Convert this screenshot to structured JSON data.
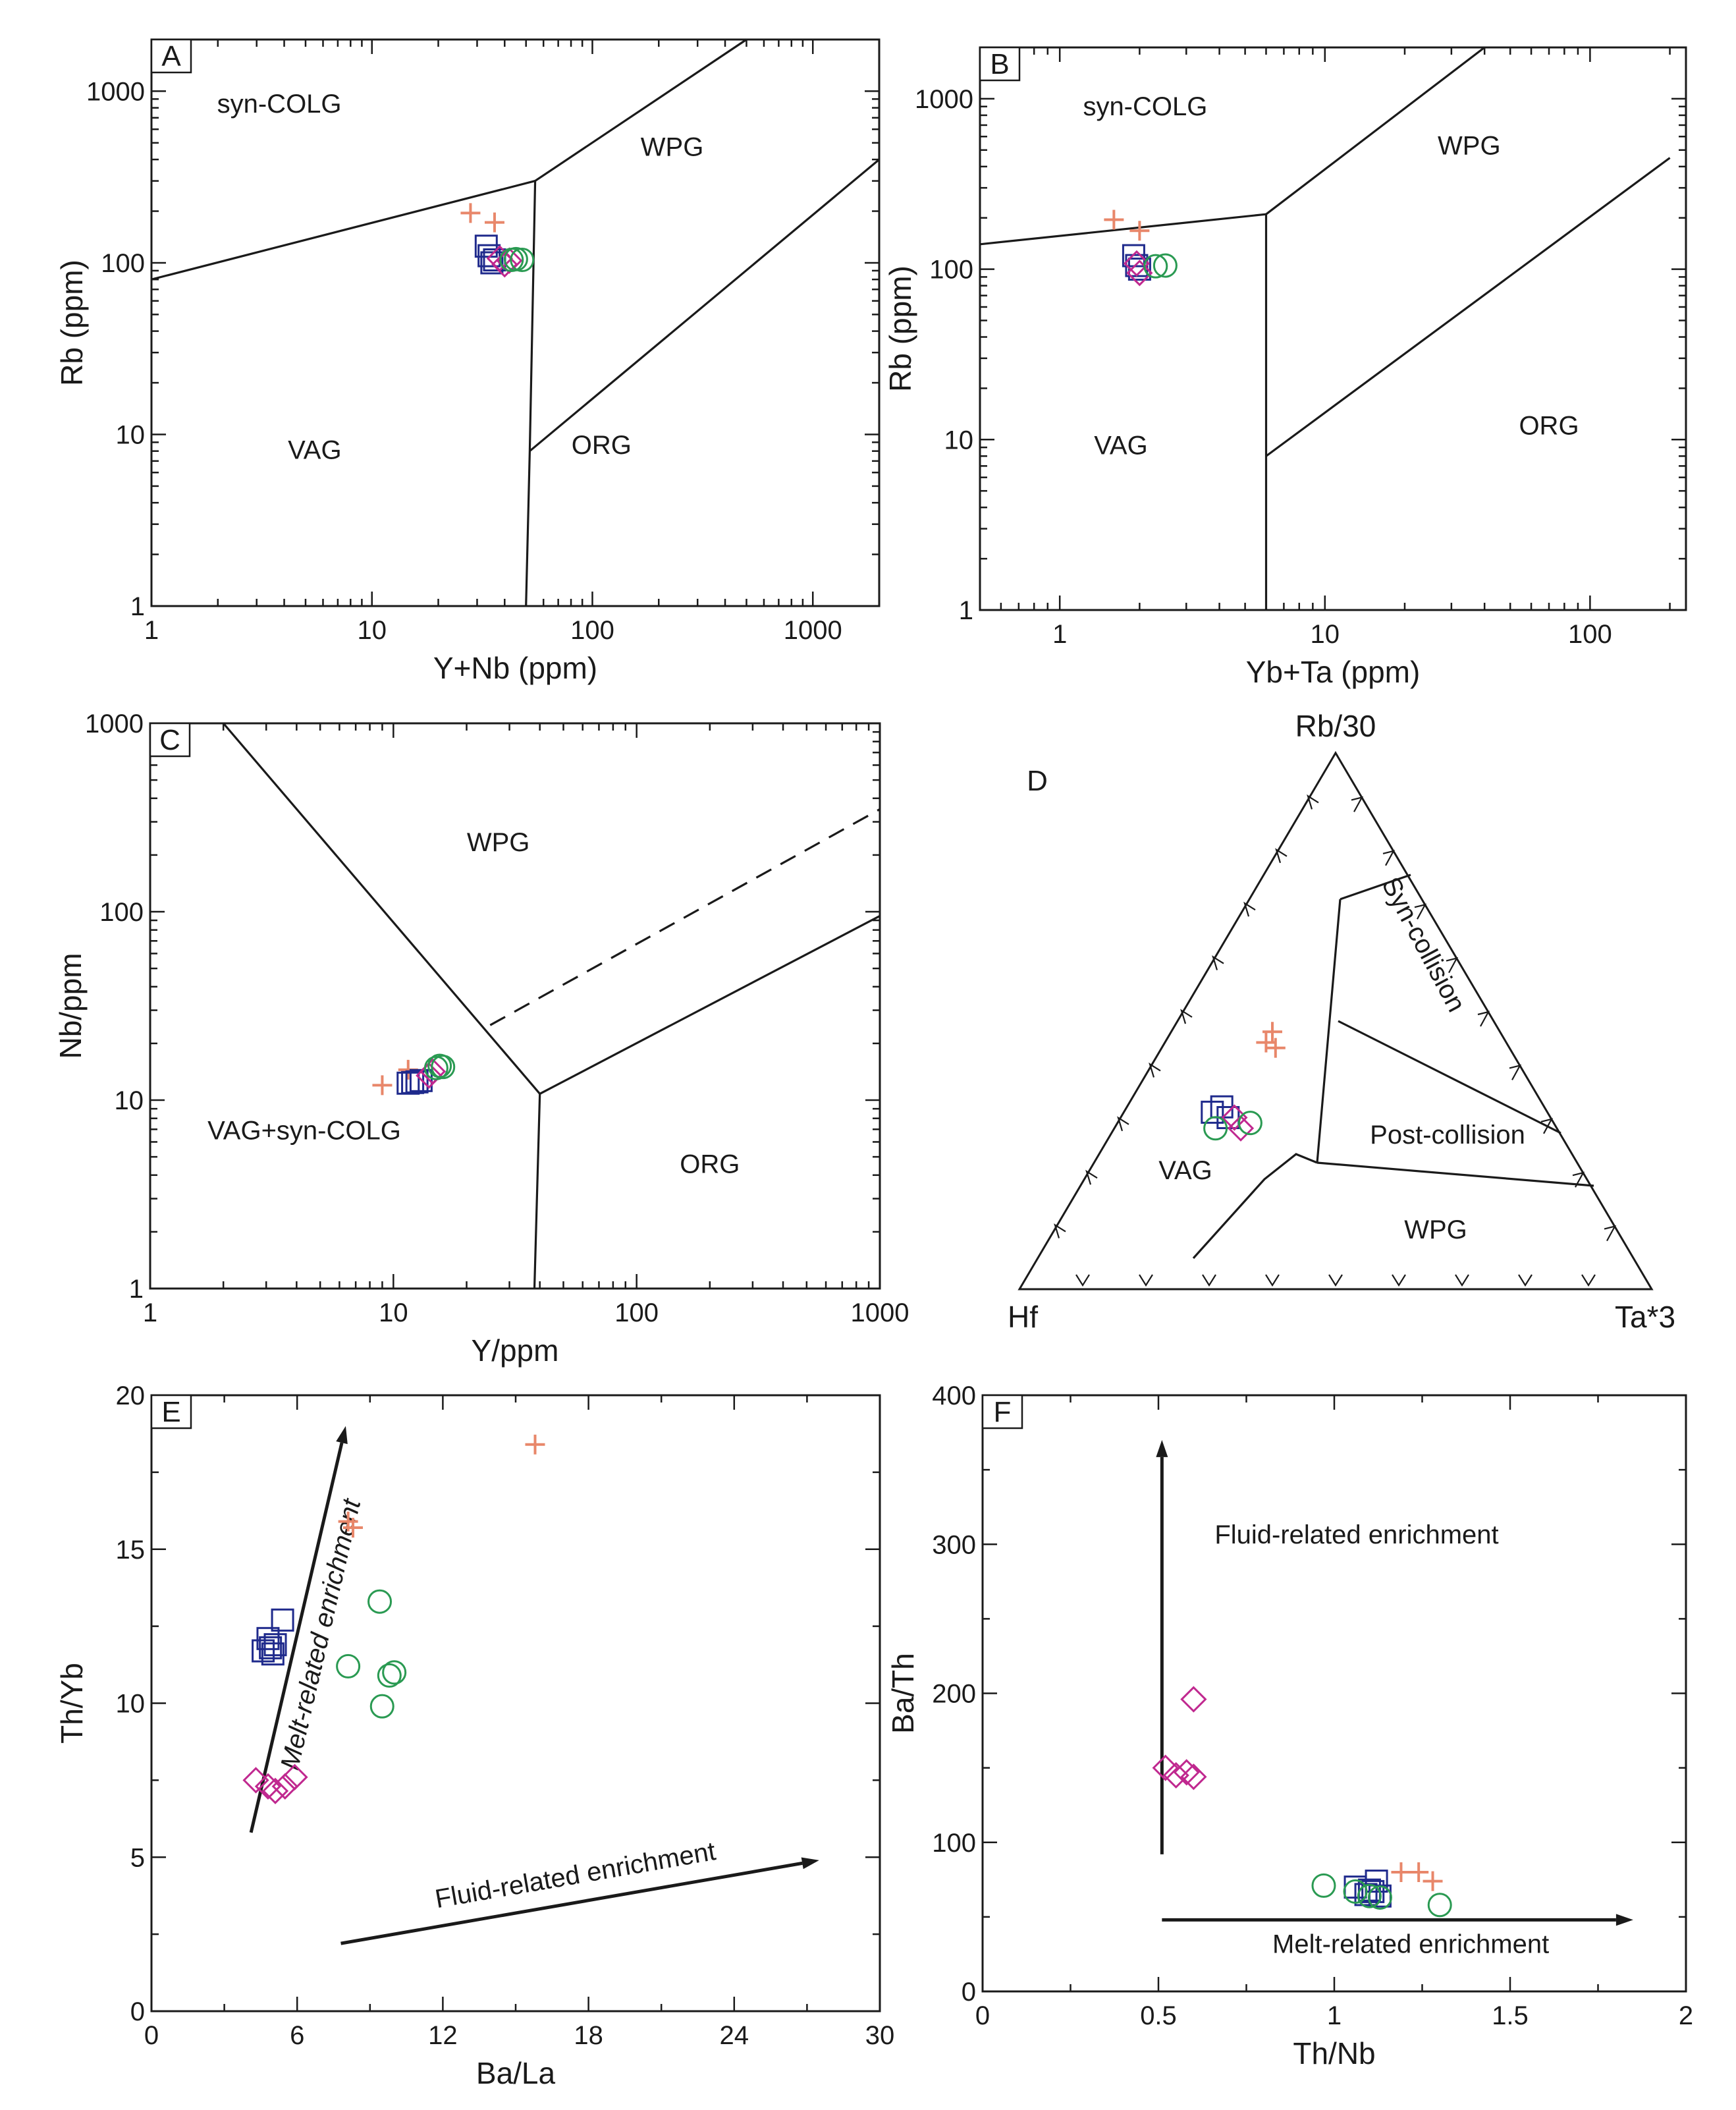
{
  "colors": {
    "cross": "#e8876a",
    "square": "#1f2a8c",
    "diamond": "#c0288f",
    "circle": "#2a9a52",
    "line": "#1a1a1a"
  },
  "chart_data": [
    {
      "panel": "A",
      "type": "scatter",
      "xscale": "log",
      "yscale": "log",
      "xlabel": "Y+Nb (ppm)",
      "ylabel": "Rb (ppm)",
      "xlim": [
        1,
        2000
      ],
      "ylim": [
        1,
        2000
      ],
      "xticks": [
        1,
        10,
        100,
        1000
      ],
      "xtick_labels": [
        "1",
        "10",
        "100",
        "1000"
      ],
      "yticks": [
        1,
        10,
        100,
        1000
      ],
      "ytick_labels": [
        "1",
        "10",
        "100",
        "1000"
      ],
      "regions": [
        {
          "label": "syn-COLG",
          "x": 3.8,
          "y": 750
        },
        {
          "label": "WPG",
          "x": 230,
          "y": 420
        },
        {
          "label": "VAG",
          "x": 5.5,
          "y": 7.2
        },
        {
          "label": "ORG",
          "x": 110,
          "y": 7.7
        }
      ],
      "boundaries": [
        {
          "points": [
            [
              1,
              80
            ],
            [
              55,
              300
            ]
          ]
        },
        {
          "points": [
            [
              55,
              300
            ],
            [
              52,
              8
            ],
            [
              50,
              1
            ]
          ]
        },
        {
          "points": [
            [
              55,
              300
            ],
            [
              500,
              2000
            ]
          ]
        },
        {
          "points": [
            [
              52,
              8
            ],
            [
              2000,
              400
            ]
          ]
        }
      ],
      "series": [
        {
          "marker": "cross",
          "points": [
            [
              28,
              195
            ],
            [
              36,
              172
            ]
          ]
        },
        {
          "marker": "square",
          "points": [
            [
              33,
              125
            ],
            [
              34,
              110
            ],
            [
              35,
              100
            ],
            [
              36,
              104
            ]
          ]
        },
        {
          "marker": "diamond",
          "points": [
            [
              40,
              98
            ],
            [
              42,
              103
            ],
            [
              38,
              106
            ]
          ]
        },
        {
          "marker": "circle",
          "points": [
            [
              43,
              104
            ],
            [
              45,
              105
            ],
            [
              48,
              104
            ]
          ]
        }
      ]
    },
    {
      "panel": "B",
      "type": "scatter",
      "xscale": "log",
      "yscale": "log",
      "xlabel": "Yb+Ta (ppm)",
      "ylabel": "Rb (ppm)",
      "xlim": [
        0.5,
        230
      ],
      "ylim": [
        1,
        2000
      ],
      "xticks": [
        1,
        10,
        100
      ],
      "xtick_labels": [
        "1",
        "10",
        "100"
      ],
      "yticks": [
        1,
        10,
        100,
        1000
      ],
      "ytick_labels": [
        "1",
        "10",
        "100",
        "1000"
      ],
      "regions": [
        {
          "label": "syn-COLG",
          "x": 2.1,
          "y": 800
        },
        {
          "label": "WPG",
          "x": 35,
          "y": 470
        },
        {
          "label": "VAG",
          "x": 1.7,
          "y": 8.2
        },
        {
          "label": "ORG",
          "x": 70,
          "y": 10.7
        }
      ],
      "boundaries": [
        {
          "points": [
            [
              0.5,
              140
            ],
            [
              6,
              210
            ]
          ]
        },
        {
          "points": [
            [
              6,
              210
            ],
            [
              6,
              1
            ]
          ]
        },
        {
          "points": [
            [
              6,
              210
            ],
            [
              40,
              2000
            ]
          ]
        },
        {
          "points": [
            [
              6,
              8
            ],
            [
              200,
              450
            ]
          ]
        }
      ],
      "series": [
        {
          "marker": "cross",
          "points": [
            [
              1.6,
              195
            ],
            [
              2.0,
              168
            ]
          ]
        },
        {
          "marker": "square",
          "points": [
            [
              1.9,
              120
            ],
            [
              1.95,
              105
            ],
            [
              2.0,
              100
            ]
          ]
        },
        {
          "marker": "diamond",
          "points": [
            [
              2.0,
              95
            ],
            [
              1.95,
              108
            ]
          ]
        },
        {
          "marker": "circle",
          "points": [
            [
              2.3,
              104
            ],
            [
              2.5,
              105
            ]
          ]
        }
      ]
    },
    {
      "panel": "C",
      "type": "scatter",
      "xscale": "log",
      "yscale": "log",
      "xlabel": "Y/ppm",
      "ylabel": "Nb/ppm",
      "xlim": [
        1,
        1000
      ],
      "ylim": [
        1,
        1000
      ],
      "xticks": [
        1,
        10,
        100,
        1000
      ],
      "xtick_labels": [
        "1",
        "10",
        "100",
        "1000"
      ],
      "yticks": [
        1,
        10,
        100,
        1000
      ],
      "ytick_labels": [
        "1",
        "10",
        "100",
        "1000"
      ],
      "regions": [
        {
          "label": "WPG",
          "x": 27,
          "y": 210
        },
        {
          "label": "VAG+syn-COLG",
          "x": 4.3,
          "y": 6.2
        },
        {
          "label": "ORG",
          "x": 200,
          "y": 4.1
        }
      ],
      "boundaries": [
        {
          "points": [
            [
              1000,
              95
            ],
            [
              40,
              10.8
            ],
            [
              38,
              1
            ]
          ]
        },
        {
          "points": [
            [
              40,
              10.8
            ],
            [
              2,
              1000
            ]
          ]
        },
        {
          "points": [
            [
              25,
              25
            ],
            [
              1000,
              350
            ]
          ],
          "dashed": true
        }
      ],
      "series": [
        {
          "marker": "cross",
          "points": [
            [
              9,
              12
            ],
            [
              11.5,
              14.5
            ]
          ]
        },
        {
          "marker": "square",
          "points": [
            [
              11.5,
              12.3
            ],
            [
              12,
              12.4
            ],
            [
              12.5,
              12.5
            ],
            [
              13,
              12.7
            ]
          ]
        },
        {
          "marker": "diamond",
          "points": [
            [
              14,
              13.5
            ],
            [
              14.5,
              14.2
            ]
          ]
        },
        {
          "marker": "circle",
          "points": [
            [
              15,
              14.8
            ],
            [
              15.5,
              15.2
            ],
            [
              16,
              15
            ]
          ]
        }
      ]
    },
    {
      "panel": "D",
      "type": "ternary",
      "vertices": {
        "top": "Rb/30",
        "left": "Hf",
        "right": "Ta*3"
      },
      "regions": [
        {
          "label": "VAG"
        },
        {
          "label": "Syn-collision"
        },
        {
          "label": "Post-collision"
        },
        {
          "label": "WPG"
        }
      ],
      "series": [
        {
          "marker": "cross",
          "points": [
            [
              0.48,
              0.36,
              0.16
            ],
            [
              0.46,
              0.38,
              0.16
            ],
            [
              0.45,
              0.37,
              0.18
            ]
          ]
        },
        {
          "marker": "square",
          "points": [
            [
              0.33,
              0.53,
              0.14
            ],
            [
              0.34,
              0.51,
              0.15
            ],
            [
              0.32,
              0.51,
              0.17
            ]
          ]
        },
        {
          "marker": "diamond",
          "points": [
            [
              0.32,
              0.5,
              0.18
            ],
            [
              0.3,
              0.5,
              0.2
            ]
          ]
        },
        {
          "marker": "circle",
          "points": [
            [
              0.3,
              0.54,
              0.16
            ],
            [
              0.31,
              0.48,
              0.21
            ]
          ]
        }
      ]
    },
    {
      "panel": "E",
      "type": "scatter",
      "xlabel": "Ba/La",
      "ylabel": "Th/Yb",
      "xlim": [
        0,
        30
      ],
      "ylim": [
        0,
        20
      ],
      "xticks": [
        0,
        6,
        12,
        18,
        24,
        30
      ],
      "xtick_labels": [
        "0",
        "6",
        "12",
        "18",
        "24",
        "30"
      ],
      "yticks": [
        0,
        5,
        10,
        15,
        20
      ],
      "ytick_labels": [
        "0",
        "5",
        "10",
        "15",
        "20"
      ],
      "annotations": [
        {
          "text": "Melt-related enrichment",
          "from": [
            4.1,
            5.8
          ],
          "to": [
            8.0,
            19.0
          ]
        },
        {
          "text": "Fluid-related enrichment",
          "from": [
            7.8,
            2.2
          ],
          "to": [
            27.5,
            4.9
          ]
        }
      ],
      "series": [
        {
          "marker": "cross",
          "points": [
            [
              15.8,
              18.4
            ],
            [
              8.1,
              15.9
            ],
            [
              8.3,
              15.7
            ]
          ]
        },
        {
          "marker": "square",
          "points": [
            [
              5.4,
              12.7
            ],
            [
              4.8,
              12.1
            ],
            [
              5.1,
              11.9
            ],
            [
              4.6,
              11.7
            ],
            [
              5.0,
              11.6
            ],
            [
              4.9,
              11.8
            ]
          ]
        },
        {
          "marker": "diamond",
          "points": [
            [
              4.3,
              7.5
            ],
            [
              4.8,
              7.3
            ],
            [
              5.1,
              7.15
            ],
            [
              5.5,
              7.3
            ],
            [
              5.9,
              7.6
            ]
          ]
        },
        {
          "marker": "circle",
          "points": [
            [
              9.4,
              13.3
            ],
            [
              8.1,
              11.2
            ],
            [
              10.0,
              11.0
            ],
            [
              9.8,
              10.9
            ],
            [
              9.5,
              9.9
            ]
          ]
        }
      ]
    },
    {
      "panel": "F",
      "type": "scatter",
      "xlabel": "Th/Nb",
      "ylabel": "Ba/Th",
      "xlim": [
        0,
        2
      ],
      "ylim": [
        0,
        400
      ],
      "xticks": [
        0,
        0.5,
        1,
        1.5,
        2
      ],
      "xtick_labels": [
        "0",
        "0.5",
        "1",
        "1.5",
        "2"
      ],
      "yticks": [
        0,
        100,
        200,
        300,
        400
      ],
      "ytick_labels": [
        "0",
        "100",
        "200",
        "300",
        "400"
      ],
      "annotations": [
        {
          "text": "Fluid-related enrichment",
          "from": [
            0.51,
            92
          ],
          "to": [
            0.51,
            370
          ]
        },
        {
          "text": "Melt-related enrichment",
          "from": [
            0.51,
            48
          ],
          "to": [
            1.85,
            48
          ]
        }
      ],
      "series": [
        {
          "marker": "cross",
          "points": [
            [
              1.19,
              80
            ],
            [
              1.24,
              80
            ],
            [
              1.28,
              74
            ]
          ]
        },
        {
          "marker": "square",
          "points": [
            [
              1.06,
              70
            ],
            [
              1.1,
              68
            ],
            [
              1.12,
              74
            ],
            [
              1.13,
              64
            ],
            [
              1.11,
              67
            ],
            [
              1.09,
              65
            ]
          ]
        },
        {
          "marker": "diamond",
          "points": [
            [
              0.6,
              196
            ],
            [
              0.52,
              150
            ],
            [
              0.55,
              145
            ],
            [
              0.58,
              147
            ],
            [
              0.6,
              144
            ]
          ]
        },
        {
          "marker": "circle",
          "points": [
            [
              0.97,
              71
            ],
            [
              1.06,
              67
            ],
            [
              1.1,
              64
            ],
            [
              1.13,
              63
            ],
            [
              1.3,
              58
            ]
          ]
        }
      ]
    }
  ]
}
